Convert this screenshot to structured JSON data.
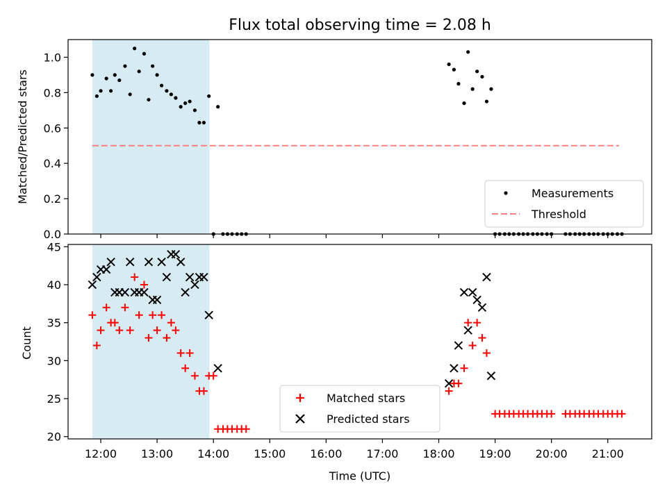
{
  "chart_data": [
    {
      "type": "scatter",
      "title": "Flux total observing time = 2.08 h",
      "xlabel": "",
      "ylabel": "Matched/Predicted stars",
      "ylim": [
        0,
        1.1
      ],
      "yticks": [
        "0.0",
        "0.2",
        "0.4",
        "0.6",
        "0.8",
        "1.0"
      ],
      "ytick_values": [
        0,
        0.2,
        0.4,
        0.6,
        0.8,
        1.0
      ],
      "xlim": [
        11.42,
        21.78
      ],
      "shaded_span": [
        11.85,
        13.93
      ],
      "shaded_color": "#add8e6",
      "legend_location": "lower-right",
      "series": [
        {
          "name": "Measurements",
          "marker": "dot",
          "color": "#000000",
          "x": [
            11.85,
            11.93,
            12.0,
            12.1,
            12.18,
            12.25,
            12.33,
            12.43,
            12.52,
            12.6,
            12.68,
            12.77,
            12.85,
            12.92,
            13.0,
            13.08,
            13.17,
            13.25,
            13.33,
            13.42,
            13.5,
            13.58,
            13.67,
            13.75,
            13.83,
            13.92,
            14.08,
            18.18,
            18.27,
            18.35,
            18.45,
            18.52,
            18.6,
            18.68,
            18.77,
            18.85,
            18.93
          ],
          "y": [
            0.9,
            0.78,
            0.81,
            0.88,
            0.81,
            0.9,
            0.87,
            0.95,
            0.79,
            1.05,
            0.92,
            1.02,
            0.76,
            0.95,
            0.9,
            0.84,
            0.81,
            0.79,
            0.77,
            0.72,
            0.74,
            0.75,
            0.7,
            0.63,
            0.63,
            0.78,
            0.72,
            0.96,
            0.93,
            0.85,
            0.74,
            1.03,
            0.82,
            0.92,
            0.89,
            0.75,
            0.82
          ],
          "zero_x": [
            14.0,
            14.17,
            14.25,
            14.33,
            14.42,
            14.5,
            14.58,
            19.0,
            19.08,
            19.17,
            19.25,
            19.33,
            19.42,
            19.5,
            19.58,
            19.67,
            19.75,
            19.83,
            19.92,
            20.0,
            20.25,
            20.33,
            20.42,
            20.5,
            20.58,
            20.67,
            20.75,
            20.83,
            20.92,
            21.0,
            21.08,
            21.17,
            21.25
          ]
        },
        {
          "name": "Threshold",
          "type": "line",
          "style": "dashed",
          "color": "#ff7f7f",
          "x": [
            11.85,
            21.2
          ],
          "y": [
            0.5,
            0.5
          ]
        }
      ]
    },
    {
      "type": "scatter",
      "title": "",
      "xlabel": "Time (UTC)",
      "ylabel": "Count",
      "ylim": [
        19.7,
        45.3
      ],
      "yticks": [
        "20",
        "25",
        "30",
        "35",
        "40",
        "45"
      ],
      "ytick_values": [
        20,
        25,
        30,
        35,
        40,
        45
      ],
      "xlim": [
        11.42,
        21.78
      ],
      "xticks": [
        "12:00",
        "13:00",
        "14:00",
        "15:00",
        "16:00",
        "17:00",
        "18:00",
        "19:00",
        "20:00",
        "21:00"
      ],
      "xtick_values": [
        12,
        13,
        14,
        15,
        16,
        17,
        18,
        19,
        20,
        21
      ],
      "shaded_span": [
        11.85,
        13.93
      ],
      "shaded_color": "#add8e6",
      "legend_location": "lower-center",
      "series": [
        {
          "name": "Matched stars",
          "marker": "plus",
          "color": "#ff0000",
          "x": [
            11.85,
            11.93,
            12.0,
            12.1,
            12.18,
            12.25,
            12.33,
            12.43,
            12.52,
            12.6,
            12.68,
            12.77,
            12.85,
            12.92,
            13.0,
            13.08,
            13.17,
            13.25,
            13.33,
            13.42,
            13.5,
            13.58,
            13.67,
            13.75,
            13.83,
            13.92,
            14.0,
            14.08,
            14.17,
            14.25,
            14.33,
            14.42,
            14.5,
            14.58,
            18.18,
            18.27,
            18.35,
            18.45,
            18.52,
            18.6,
            18.68,
            18.77,
            18.85,
            19.0,
            19.08,
            19.17,
            19.25,
            19.33,
            19.42,
            19.5,
            19.58,
            19.67,
            19.75,
            19.83,
            19.92,
            20.0,
            20.25,
            20.33,
            20.42,
            20.5,
            20.58,
            20.67,
            20.75,
            20.83,
            20.92,
            21.0,
            21.08,
            21.17,
            21.25
          ],
          "y": [
            36,
            32,
            34,
            37,
            35,
            35,
            34,
            37,
            34,
            41,
            36,
            40,
            33,
            36,
            34,
            36,
            33,
            35,
            34,
            31,
            29,
            31,
            28,
            26,
            26,
            28,
            28,
            21,
            21,
            21,
            21,
            21,
            21,
            21,
            26,
            27,
            27,
            29,
            35,
            32,
            35,
            33,
            31,
            23,
            23,
            23,
            23,
            23,
            23,
            23,
            23,
            23,
            23,
            23,
            23,
            23,
            23,
            23,
            23,
            23,
            23,
            23,
            23,
            23,
            23,
            23,
            23,
            23,
            23
          ]
        },
        {
          "name": "Predicted stars",
          "marker": "x",
          "color": "#000000",
          "x": [
            11.85,
            11.93,
            12.0,
            12.1,
            12.18,
            12.25,
            12.33,
            12.43,
            12.52,
            12.6,
            12.68,
            12.77,
            12.85,
            12.92,
            13.0,
            13.08,
            13.17,
            13.25,
            13.33,
            13.42,
            13.5,
            13.58,
            13.67,
            13.75,
            13.83,
            13.92,
            14.08,
            18.18,
            18.27,
            18.35,
            18.45,
            18.52,
            18.6,
            18.68,
            18.77,
            18.85,
            18.93
          ],
          "y": [
            40,
            41,
            42,
            42,
            43,
            39,
            39,
            39,
            43,
            39,
            39,
            39,
            43,
            38,
            38,
            43,
            41,
            44,
            44,
            43,
            39,
            41,
            40,
            41,
            41,
            36,
            29,
            27,
            29,
            32,
            39,
            34,
            39,
            38,
            37,
            41,
            28
          ]
        }
      ]
    }
  ]
}
